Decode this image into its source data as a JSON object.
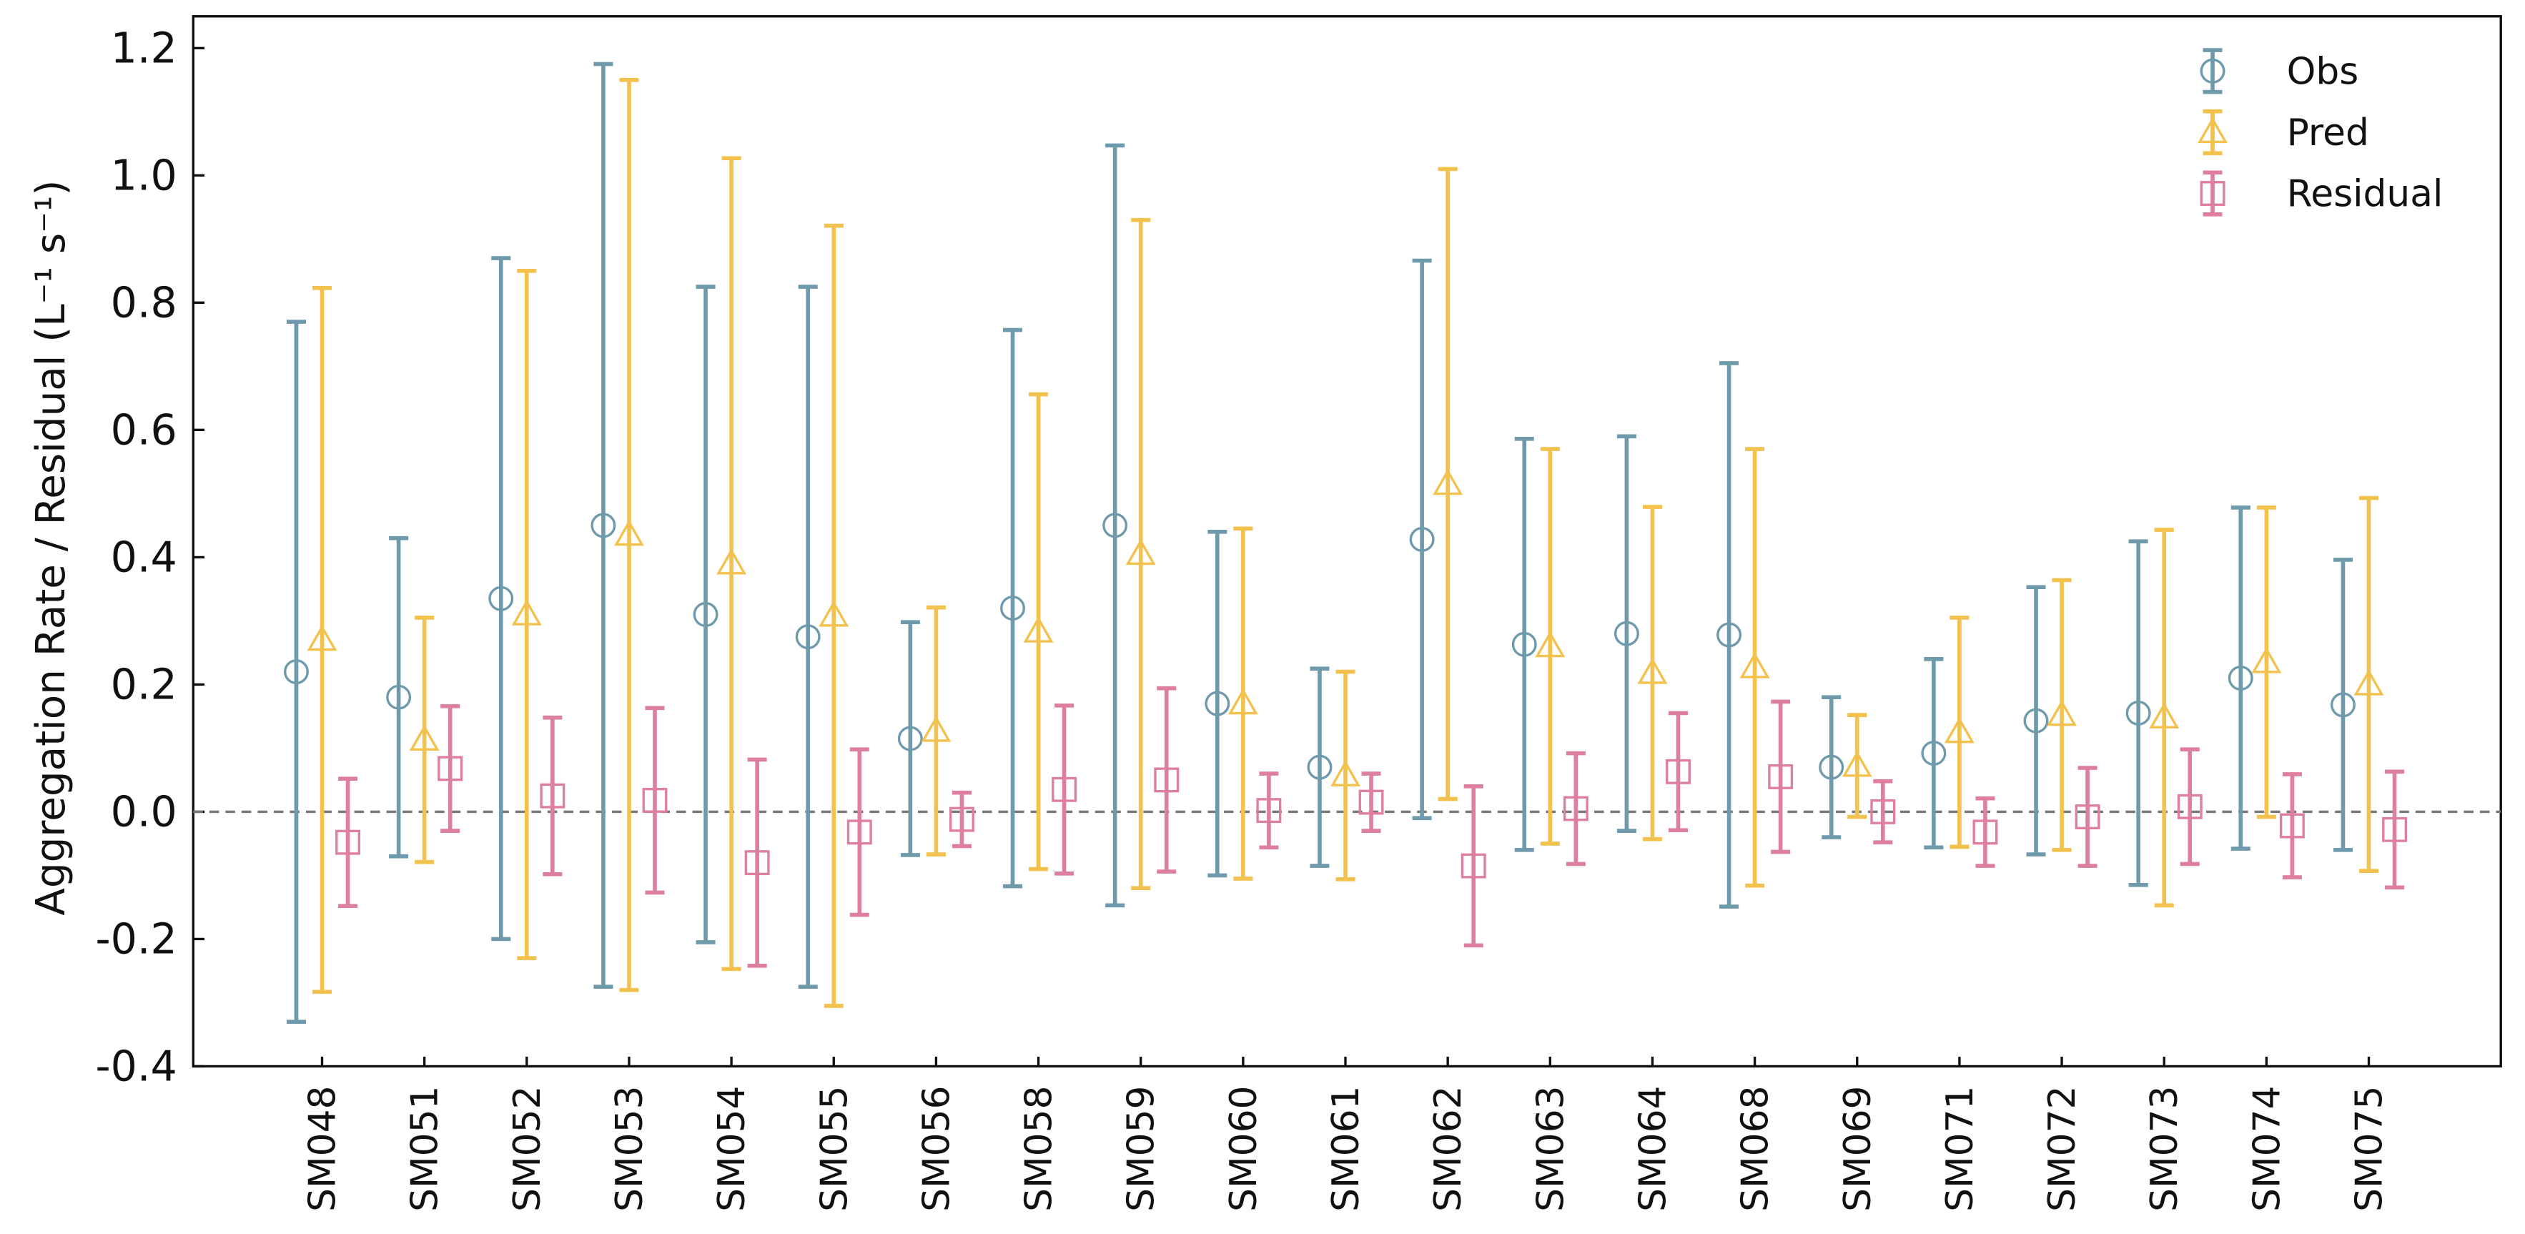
{
  "chart_data": {
    "type": "errorbar",
    "y_label": "Aggregation Rate / Residual (L⁻¹ s⁻¹)",
    "categories": [
      "SM048",
      "SM051",
      "SM052",
      "SM053",
      "SM054",
      "SM055",
      "SM056",
      "SM058",
      "SM059",
      "SM060",
      "SM061",
      "SM062",
      "SM063",
      "SM064",
      "SM068",
      "SM069",
      "SM071",
      "SM072",
      "SM073",
      "SM074",
      "SM075"
    ],
    "series": [
      {
        "name": "Obs",
        "color": "#6e9aab",
        "marker": "circle",
        "values": [
          0.22,
          0.18,
          0.335,
          0.45,
          0.31,
          0.275,
          0.115,
          0.32,
          0.45,
          0.17,
          0.07,
          0.428,
          0.263,
          0.28,
          0.278,
          0.07,
          0.092,
          0.143,
          0.155,
          0.21,
          0.168
        ],
        "errors": [
          0.55,
          0.25,
          0.535,
          0.725,
          0.515,
          0.55,
          0.183,
          0.437,
          0.597,
          0.27,
          0.155,
          0.438,
          0.323,
          0.31,
          0.427,
          0.11,
          0.148,
          0.21,
          0.27,
          0.268,
          0.228
        ]
      },
      {
        "name": "Pred",
        "color": "#f2c14e",
        "marker": "triangle",
        "values": [
          0.27,
          0.113,
          0.31,
          0.435,
          0.39,
          0.308,
          0.127,
          0.283,
          0.405,
          0.17,
          0.057,
          0.515,
          0.26,
          0.218,
          0.227,
          0.072,
          0.125,
          0.152,
          0.148,
          0.235,
          0.2
        ],
        "errors": [
          0.553,
          0.192,
          0.54,
          0.715,
          0.637,
          0.613,
          0.194,
          0.373,
          0.525,
          0.275,
          0.163,
          0.495,
          0.31,
          0.261,
          0.343,
          0.08,
          0.18,
          0.212,
          0.295,
          0.243,
          0.293
        ]
      },
      {
        "name": "Residual",
        "color": "#de7fa0",
        "marker": "square",
        "values": [
          -0.048,
          0.068,
          0.025,
          0.018,
          -0.08,
          -0.032,
          -0.012,
          0.035,
          0.05,
          0.002,
          0.015,
          -0.085,
          0.005,
          0.063,
          0.055,
          0.0,
          -0.032,
          -0.008,
          0.008,
          -0.022,
          -0.028
        ],
        "errors": [
          0.1,
          0.098,
          0.123,
          0.145,
          0.162,
          0.13,
          0.042,
          0.132,
          0.144,
          0.058,
          0.045,
          0.125,
          0.087,
          0.092,
          0.118,
          0.048,
          0.053,
          0.077,
          0.09,
          0.081,
          0.091
        ]
      }
    ],
    "ylim": [
      -0.4,
      1.25
    ],
    "yticks": [
      -0.4,
      -0.2,
      {
        "value": 0,
        "label": "0.0"
      },
      0.2,
      0.4,
      0.6,
      0.8,
      {
        "value": 1,
        "label": "1.0"
      },
      1.2
    ],
    "reference_line": 0,
    "legend": "upper right"
  }
}
